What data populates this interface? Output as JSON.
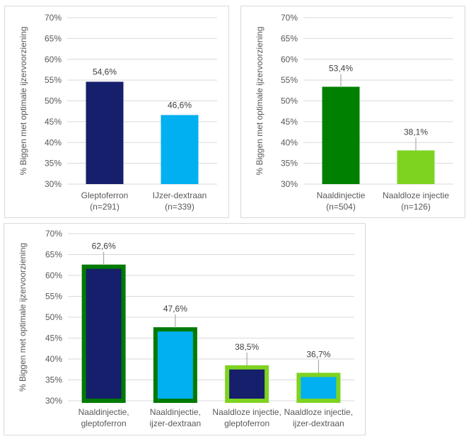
{
  "chart_data": [
    {
      "type": "bar",
      "title": "",
      "xlabel": "",
      "ylabel": "% Biggen met optimale ijzervoorziening",
      "ylim": [
        30,
        70
      ],
      "yticks": [
        "30%",
        "35%",
        "40%",
        "45%",
        "50%",
        "55%",
        "60%",
        "65%",
        "70%"
      ],
      "grid": true,
      "categories": [
        [
          "Gleptoferron",
          "(n=291)"
        ],
        [
          "IJzer-dextraan",
          "(n=339)"
        ]
      ],
      "values": [
        54.6,
        46.6
      ],
      "data_labels": [
        "54,6%",
        "46,6%"
      ],
      "fill_colors": [
        "#161f6b",
        "#00b0f0"
      ],
      "outline_colors": [
        null,
        null
      ],
      "leader_lines": false
    },
    {
      "type": "bar",
      "title": "",
      "xlabel": "",
      "ylabel": "% Biggen met optimale ijzervoorziening",
      "ylim": [
        30,
        70
      ],
      "yticks": [
        "30%",
        "35%",
        "40%",
        "45%",
        "50%",
        "55%",
        "60%",
        "65%",
        "70%"
      ],
      "grid": true,
      "categories": [
        [
          "Naaldinjectie",
          "(n=504)"
        ],
        [
          "Naaldloze injectie",
          "(n=126)"
        ]
      ],
      "values": [
        53.4,
        38.1
      ],
      "data_labels": [
        "53,4%",
        "38,1%"
      ],
      "fill_colors": [
        "#008000",
        "#7ed321"
      ],
      "outline_colors": [
        null,
        null
      ],
      "leader_lines": true
    },
    {
      "type": "bar",
      "title": "",
      "xlabel": "",
      "ylabel": "% Biggen met optimale ijzervoorziening",
      "ylim": [
        30,
        70
      ],
      "yticks": [
        "30%",
        "35%",
        "40%",
        "45%",
        "50%",
        "55%",
        "60%",
        "65%",
        "70%"
      ],
      "grid": true,
      "categories": [
        [
          "Naaldinjectie,",
          "gleptoferron"
        ],
        [
          "Naaldinjectie,",
          "ijzer-dextraan"
        ],
        [
          "Naaldloze injectie,",
          "gleptoferron"
        ],
        [
          "Naaldloze injectie,",
          "ijzer-dextraan"
        ]
      ],
      "values": [
        62.6,
        47.6,
        38.5,
        36.7
      ],
      "data_labels": [
        "62,6%",
        "47,6%",
        "38,5%",
        "36,7%"
      ],
      "fill_colors": [
        "#161f6b",
        "#00b0f0",
        "#161f6b",
        "#00b0f0"
      ],
      "outline_colors": [
        "#007a00",
        "#007a00",
        "#7ed321",
        "#7ed321"
      ],
      "leader_lines": true
    }
  ]
}
